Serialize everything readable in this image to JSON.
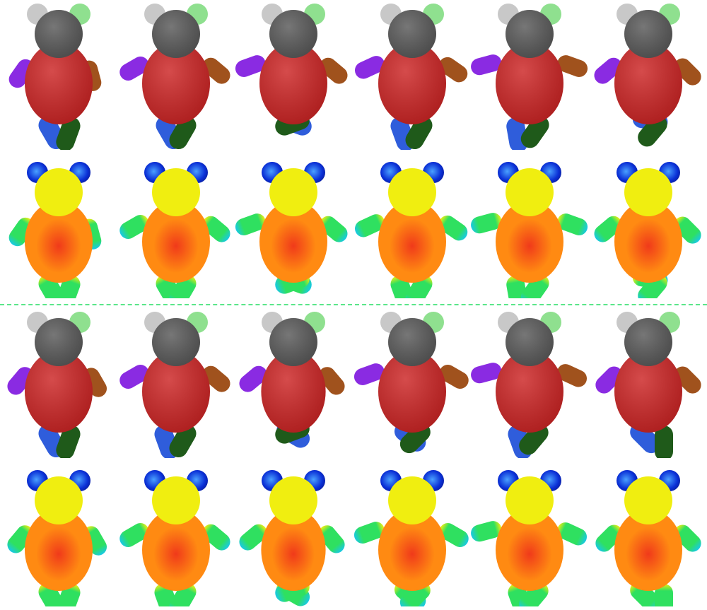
{
  "figure": {
    "divider_color": "#5be68a",
    "segmentation_colors": {
      "head": "#595959",
      "left_ear": "#c8c8c8",
      "right_ear": "#8fe08f",
      "torso": "#cc2424",
      "left_arm": "#8a2be2",
      "right_arm": "#a0521d",
      "left_leg": "#2f5ddb",
      "right_leg": "#1f5a1a"
    },
    "heatmap_colormap": [
      "#0a2fd6",
      "#18c8e8",
      "#2fe060",
      "#f0ee10",
      "#ff8a12",
      "#f03a1a"
    ],
    "rows": [
      {
        "kind": "segmentation",
        "poses": 6
      },
      {
        "kind": "heatmap",
        "poses": 6
      },
      {
        "kind": "segmentation",
        "poses": 6
      },
      {
        "kind": "heatmap",
        "poses": 6
      }
    ]
  }
}
